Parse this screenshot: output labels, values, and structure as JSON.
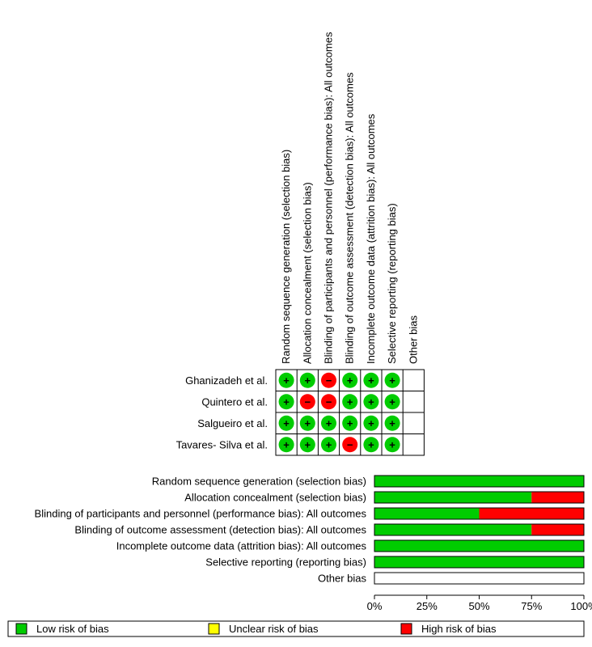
{
  "chart_data": [
    {
      "type": "table",
      "name": "risk-of-bias-summary",
      "domains": [
        "Random sequence generation (selection bias)",
        "Allocation concealment (selection bias)",
        "Blinding of participants and personnel (performance bias): All outcomes",
        "Blinding of outcome assessment (detection bias): All outcomes",
        "Incomplete outcome data (attrition bias): All outcomes",
        "Selective reporting (reporting bias)",
        "Other bias"
      ],
      "studies": [
        {
          "name": "Ghanizadeh et al.",
          "ratings": [
            "low",
            "low",
            "high",
            "low",
            "low",
            "low",
            ""
          ]
        },
        {
          "name": "Quintero et al.",
          "ratings": [
            "low",
            "high",
            "high",
            "low",
            "low",
            "low",
            ""
          ]
        },
        {
          "name": "Salgueiro et al.",
          "ratings": [
            "low",
            "low",
            "low",
            "low",
            "low",
            "low",
            ""
          ]
        },
        {
          "name": "Tavares- Silva et al.",
          "ratings": [
            "low",
            "low",
            "low",
            "high",
            "low",
            "low",
            ""
          ]
        }
      ],
      "symbols": {
        "low": "+",
        "high": "−"
      }
    },
    {
      "type": "bar",
      "name": "risk-of-bias-graph",
      "categories": [
        "Random sequence generation (selection bias)",
        "Allocation concealment (selection bias)",
        "Blinding of participants and personnel (performance bias): All outcomes",
        "Blinding of outcome assessment (detection bias): All outcomes",
        "Incomplete outcome data (attrition bias): All outcomes",
        "Selective reporting (reporting bias)",
        "Other bias"
      ],
      "series": [
        {
          "name": "Low risk of bias",
          "key": "low",
          "values": [
            100,
            75,
            50,
            75,
            100,
            100,
            0
          ]
        },
        {
          "name": "Unclear risk of bias",
          "key": "unclear",
          "values": [
            0,
            0,
            0,
            0,
            0,
            0,
            0
          ]
        },
        {
          "name": "High risk of bias",
          "key": "high",
          "values": [
            0,
            25,
            50,
            25,
            0,
            0,
            0
          ]
        }
      ],
      "xticks": [
        "0%",
        "25%",
        "50%",
        "75%",
        "100%"
      ],
      "xlim": [
        0,
        100
      ],
      "stacked": true,
      "legend_position": "bottom"
    }
  ],
  "colors": {
    "low": "#00cc00",
    "unclear": "#ffff00",
    "high": "#ff0000",
    "border": "#000000"
  }
}
